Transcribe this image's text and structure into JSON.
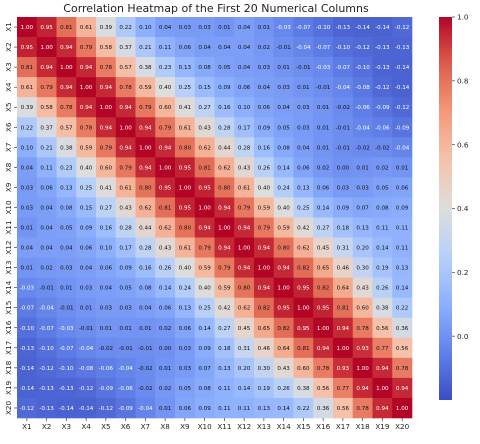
{
  "chart_data": {
    "type": "heatmap",
    "title": "Correlation Heatmap of the First 20 Numerical Columns",
    "xlabel": "",
    "ylabel": "",
    "columns": [
      "X1",
      "X2",
      "X3",
      "X4",
      "X5",
      "X6",
      "X7",
      "X8",
      "X9",
      "X10",
      "X11",
      "X12",
      "X13",
      "X14",
      "X15",
      "X16",
      "X17",
      "X18",
      "X19",
      "X20"
    ],
    "rows": [
      "X1",
      "X2",
      "X3",
      "X4",
      "X5",
      "X6",
      "X7",
      "X8",
      "X9",
      "X10",
      "X11",
      "X12",
      "X13",
      "X14",
      "X15",
      "X16",
      "X17",
      "X18",
      "X19",
      "X20"
    ],
    "values": [
      [
        1.0,
        0.95,
        0.81,
        0.61,
        0.39,
        0.22,
        0.1,
        0.04,
        0.03,
        0.03,
        0.01,
        0.04,
        0.01,
        -0.03,
        -0.07,
        -0.1,
        -0.13,
        -0.14,
        -0.14,
        -0.12
      ],
      [
        0.95,
        1.0,
        0.94,
        0.79,
        0.58,
        0.37,
        0.21,
        0.11,
        0.06,
        0.04,
        0.04,
        0.04,
        0.02,
        -0.01,
        -0.04,
        -0.07,
        -0.1,
        -0.12,
        -0.13,
        -0.13
      ],
      [
        0.81,
        0.94,
        1.0,
        0.94,
        0.78,
        0.57,
        0.38,
        0.23,
        0.13,
        0.08,
        0.05,
        0.04,
        0.03,
        0.01,
        -0.01,
        -0.03,
        -0.07,
        -0.1,
        -0.13,
        -0.14
      ],
      [
        0.61,
        0.79,
        0.94,
        1.0,
        0.94,
        0.78,
        0.59,
        0.4,
        0.25,
        0.15,
        0.09,
        0.06,
        0.04,
        0.03,
        0.01,
        -0.01,
        -0.04,
        -0.08,
        -0.12,
        -0.14
      ],
      [
        0.39,
        0.58,
        0.78,
        0.94,
        1.0,
        0.94,
        0.79,
        0.6,
        0.41,
        0.27,
        0.16,
        0.1,
        0.06,
        0.04,
        0.03,
        0.01,
        -0.02,
        -0.06,
        -0.09,
        -0.12
      ],
      [
        0.22,
        0.37,
        0.57,
        0.78,
        0.94,
        1.0,
        0.94,
        0.79,
        0.61,
        0.43,
        0.28,
        0.17,
        0.09,
        0.05,
        0.03,
        0.01,
        -0.01,
        -0.04,
        -0.06,
        -0.09
      ],
      [
        0.1,
        0.21,
        0.38,
        0.59,
        0.79,
        0.94,
        1.0,
        0.94,
        0.8,
        0.62,
        0.44,
        0.28,
        0.16,
        0.08,
        0.04,
        0.01,
        -0.01,
        -0.02,
        -0.02,
        -0.04
      ],
      [
        0.04,
        0.11,
        0.23,
        0.4,
        0.6,
        0.79,
        0.94,
        1.0,
        0.95,
        0.81,
        0.62,
        0.43,
        0.26,
        0.14,
        0.06,
        0.02,
        0.0,
        0.01,
        0.02,
        0.01
      ],
      [
        0.03,
        0.06,
        0.13,
        0.25,
        0.41,
        0.61,
        0.8,
        0.95,
        1.0,
        0.95,
        0.8,
        0.61,
        0.4,
        0.24,
        0.13,
        0.06,
        0.03,
        0.03,
        0.05,
        0.06
      ],
      [
        0.03,
        0.04,
        0.08,
        0.15,
        0.27,
        0.43,
        0.62,
        0.81,
        0.95,
        1.0,
        0.94,
        0.79,
        0.59,
        0.4,
        0.25,
        0.14,
        0.09,
        0.07,
        0.08,
        0.09
      ],
      [
        0.01,
        0.04,
        0.05,
        0.09,
        0.16,
        0.28,
        0.44,
        0.62,
        0.8,
        0.94,
        1.0,
        0.94,
        0.79,
        0.59,
        0.42,
        0.27,
        0.18,
        0.13,
        0.11,
        0.11
      ],
      [
        0.04,
        0.04,
        0.04,
        0.06,
        0.1,
        0.17,
        0.28,
        0.43,
        0.61,
        0.79,
        0.94,
        1.0,
        0.94,
        0.8,
        0.62,
        0.45,
        0.31,
        0.2,
        0.14,
        0.11
      ],
      [
        0.01,
        0.02,
        0.03,
        0.04,
        0.06,
        0.09,
        0.16,
        0.26,
        0.4,
        0.59,
        0.79,
        0.94,
        1.0,
        0.94,
        0.82,
        0.65,
        0.46,
        0.3,
        0.19,
        0.13
      ],
      [
        -0.03,
        -0.01,
        0.01,
        0.03,
        0.04,
        0.05,
        0.08,
        0.14,
        0.24,
        0.4,
        0.59,
        0.8,
        0.94,
        1.0,
        0.95,
        0.82,
        0.64,
        0.43,
        0.26,
        0.14
      ],
      [
        -0.07,
        -0.04,
        -0.01,
        0.01,
        0.03,
        0.03,
        0.04,
        0.06,
        0.13,
        0.25,
        0.42,
        0.62,
        0.82,
        0.95,
        1.0,
        0.95,
        0.81,
        0.6,
        0.38,
        0.22
      ],
      [
        -0.1,
        -0.07,
        -0.03,
        -0.01,
        0.01,
        0.01,
        0.01,
        0.02,
        0.06,
        0.14,
        0.27,
        0.45,
        0.65,
        0.82,
        0.95,
        1.0,
        0.94,
        0.78,
        0.56,
        0.36
      ],
      [
        -0.13,
        -0.1,
        -0.07,
        -0.04,
        -0.02,
        -0.01,
        -0.01,
        0.0,
        0.03,
        0.09,
        0.18,
        0.31,
        0.46,
        0.64,
        0.81,
        0.94,
        1.0,
        0.93,
        0.77,
        0.56
      ],
      [
        -0.14,
        -0.12,
        -0.1,
        -0.08,
        -0.06,
        -0.04,
        -0.02,
        0.01,
        0.03,
        0.07,
        0.13,
        0.2,
        0.3,
        0.43,
        0.6,
        0.78,
        0.93,
        1.0,
        0.94,
        0.78
      ],
      [
        -0.14,
        -0.13,
        -0.13,
        -0.12,
        -0.09,
        -0.06,
        -0.02,
        0.02,
        0.05,
        0.08,
        0.11,
        0.14,
        0.19,
        0.26,
        0.38,
        0.56,
        0.77,
        0.94,
        1.0,
        0.94
      ],
      [
        -0.12,
        -0.13,
        -0.14,
        -0.14,
        -0.12,
        -0.09,
        -0.04,
        0.01,
        0.06,
        0.09,
        0.11,
        0.11,
        0.13,
        0.14,
        0.22,
        0.36,
        0.56,
        0.78,
        0.94,
        1.0
      ]
    ],
    "colormap": "coolwarm",
    "vmin": -0.2,
    "vmax": 1.0,
    "colorbar_ticks": [
      "0.0",
      "0.2",
      "0.4",
      "0.6",
      "0.8",
      "1.0"
    ],
    "colorbar_tick_values": [
      0.0,
      0.2,
      0.4,
      0.6,
      0.8,
      1.0
    ],
    "annotations": true,
    "grid": false
  }
}
